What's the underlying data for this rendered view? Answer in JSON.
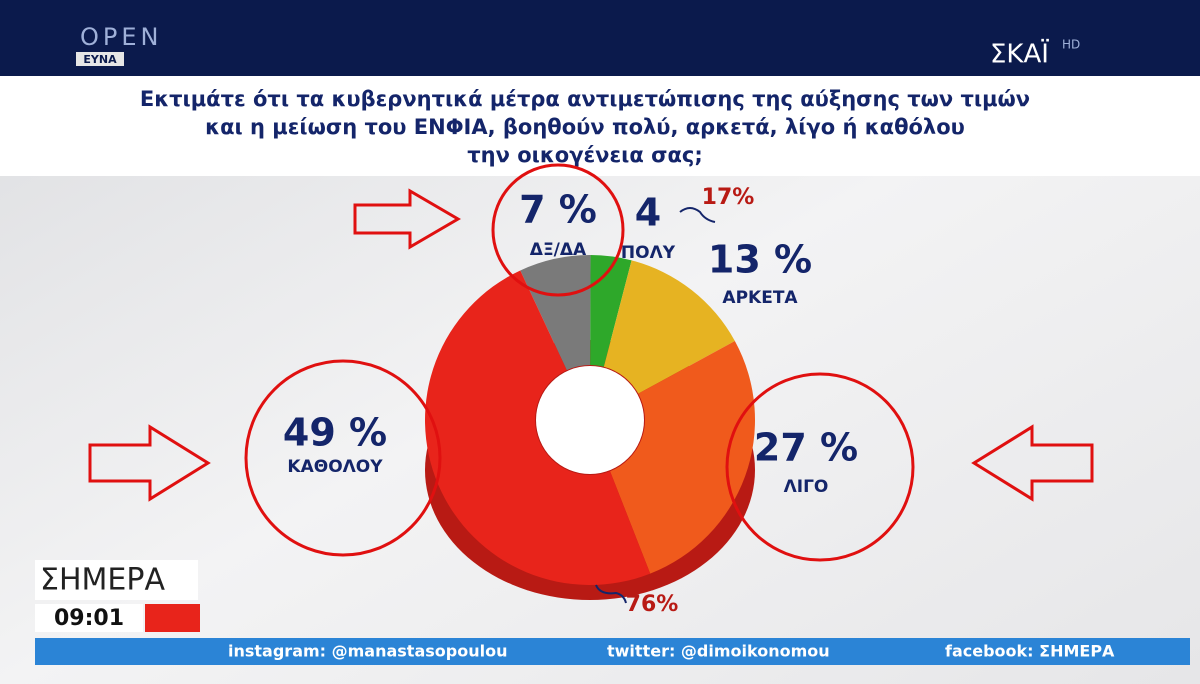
{
  "channel_logos": {
    "left_top": "OPEN",
    "left_bottom": "ΕΥΝΑ",
    "right": "ΣΚΑΪ",
    "right_badge": "HD"
  },
  "chart_data": {
    "type": "pie",
    "title_lines": [
      "Εκτιμάτε ότι τα κυβερνητικά μέτρα αντιμετώπισης της αύξησης των τιμών",
      "και η μείωση του ΕΝΦΙΑ, βοηθούν πολύ, αρκετά, λίγο ή καθόλου",
      "την οικογένεια σας;"
    ],
    "categories": [
      "ΔΞ/ΔΑ",
      "ΠΟΛΥ",
      "ΑΡΚΕΤΑ",
      "ΛΙΓΟ",
      "ΚΑΘΟΛΟΥ"
    ],
    "values": [
      7,
      4,
      13,
      27,
      49
    ],
    "value_labels": [
      "7 %",
      "4",
      "13 %",
      "27 %",
      "49 %"
    ],
    "colors": [
      "#7a7a7a",
      "#2ea82a",
      "#e6b322",
      "#f05a1c",
      "#e8241b"
    ],
    "annotations": [
      {
        "text": "17%"
      },
      {
        "text": "76%"
      }
    ]
  },
  "show": {
    "name": "ΣΗΜΕΡΑ",
    "time": "09:01"
  },
  "ticker": [
    "instagram: @manastasopoulou",
    "twitter: @dimoikonomou",
    "facebook: ΣΗΜΕΡΑ"
  ]
}
